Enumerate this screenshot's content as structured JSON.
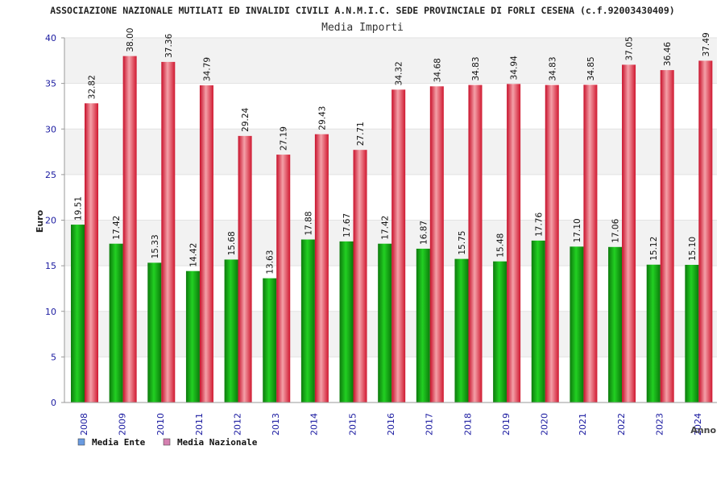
{
  "chart_data": {
    "type": "bar",
    "title": "ASSOCIAZIONE NAZIONALE MUTILATI ED INVALIDI CIVILI A.N.M.I.C. SEDE PROVINCIALE DI FORLI CESENA (c.f.92003430409)",
    "subtitle": "Media Importi",
    "ylabel": "Euro",
    "xlabel": "Anno",
    "ylim": [
      0,
      40
    ],
    "yticks": [
      "0",
      "5",
      "10",
      "15",
      "20",
      "25",
      "30",
      "35",
      "40"
    ],
    "grid": true,
    "legend_position": "bottom-left",
    "categories": [
      "2008",
      "2009",
      "2010",
      "2011",
      "2012",
      "2013",
      "2014",
      "2015",
      "2016",
      "2017",
      "2018",
      "2019",
      "2020",
      "2021",
      "2022",
      "2023",
      "2024"
    ],
    "series": [
      {
        "name": "Media Ente",
        "legend_color": "#6a9be0",
        "bar_color": "#119911",
        "values": [
          19.51,
          17.42,
          15.33,
          14.42,
          15.68,
          13.63,
          17.88,
          17.67,
          17.42,
          16.87,
          15.75,
          15.48,
          17.76,
          17.1,
          17.06,
          15.12,
          15.1
        ],
        "labels": [
          "19.51",
          "17.42",
          "15.33",
          "14.42",
          "15.68",
          "13.63",
          "17.88",
          "17.67",
          "17.42",
          "16.87",
          "15.75",
          "15.48",
          "17.76",
          "17.10",
          "17.06",
          "15.12",
          "15.10"
        ]
      },
      {
        "name": "Media Nazionale",
        "legend_color": "#d580b0",
        "bar_color": "#e52030",
        "values": [
          32.82,
          38.0,
          37.36,
          34.79,
          29.24,
          27.19,
          29.43,
          27.71,
          34.32,
          34.68,
          34.83,
          34.94,
          34.83,
          34.85,
          37.05,
          36.46,
          37.49
        ],
        "labels": [
          "32.82",
          "38.00",
          "37.36",
          "34.79",
          "29.24",
          "27.19",
          "29.43",
          "27.71",
          "34.32",
          "34.68",
          "34.83",
          "34.94",
          "34.83",
          "34.85",
          "37.05",
          "36.46",
          "37.49"
        ]
      }
    ]
  }
}
